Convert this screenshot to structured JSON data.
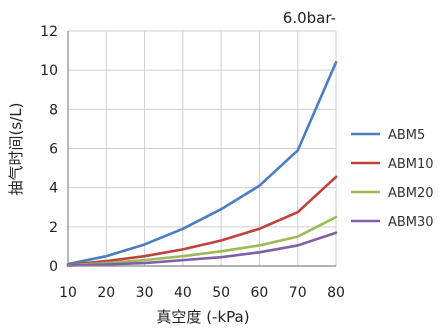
{
  "chart_data": {
    "type": "line",
    "annotation": "6.0bar-",
    "xlabel": "真空度 (-kPa)",
    "ylabel": "抽气时间(s/L)",
    "x": [
      10,
      20,
      30,
      40,
      50,
      60,
      70,
      80
    ],
    "xlim": [
      10,
      80
    ],
    "ylim": [
      0,
      12
    ],
    "yticks": [
      0,
      2,
      4,
      6,
      8,
      10,
      12
    ],
    "grid": true,
    "legend_position": "right",
    "series": [
      {
        "name": "ABM5",
        "color": "#4a7ec4",
        "values": [
          0.1,
          0.5,
          1.1,
          1.9,
          2.9,
          4.1,
          5.9,
          10.4
        ]
      },
      {
        "name": "ABM10",
        "color": "#c0413c",
        "values": [
          0.05,
          0.25,
          0.5,
          0.85,
          1.3,
          1.9,
          2.75,
          4.55
        ]
      },
      {
        "name": "ABM20",
        "color": "#9bbb59",
        "values": [
          0.03,
          0.15,
          0.3,
          0.5,
          0.75,
          1.05,
          1.5,
          2.5
        ]
      },
      {
        "name": "ABM30",
        "color": "#7f5fa8",
        "values": [
          0.02,
          0.08,
          0.15,
          0.3,
          0.45,
          0.7,
          1.05,
          1.7
        ]
      }
    ]
  }
}
